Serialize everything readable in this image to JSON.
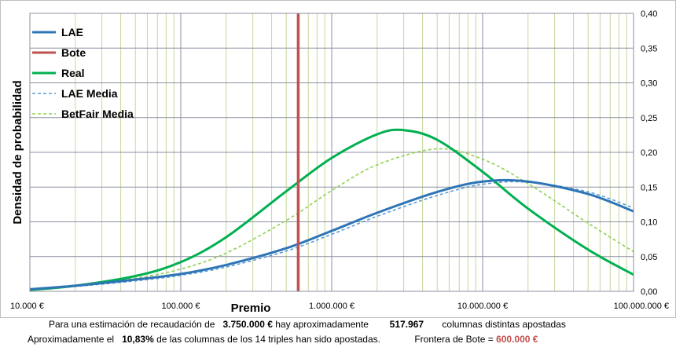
{
  "chart_data": {
    "type": "line",
    "x_scale": "log",
    "xlabel": "Premio",
    "ylabel": "Densidad de probabilidad",
    "xlim": [
      10000,
      100000000
    ],
    "ylim": [
      0,
      0.4
    ],
    "x_ticks": [
      10000,
      100000,
      1000000,
      10000000,
      100000000
    ],
    "x_tick_labels": [
      "10.000 €",
      "100.000 €",
      "1.000.000 €",
      "10.000.000 €",
      "100.000.000 €"
    ],
    "y_ticks": [
      0,
      0.05,
      0.1,
      0.15,
      0.2,
      0.25,
      0.3,
      0.35,
      0.4
    ],
    "y_tick_labels": [
      "0,00",
      "0,05",
      "0,10",
      "0,15",
      "0,20",
      "0,25",
      "0,30",
      "0,35",
      "0,40"
    ],
    "grid": true,
    "legend_position": "top-left",
    "series": [
      {
        "name": "LAE",
        "color": "#2e75b6",
        "style": "solid",
        "x": [
          10000,
          20000,
          50000,
          100000,
          200000,
          500000,
          1000000,
          2000000,
          5000000,
          10000000,
          20000000,
          50000000,
          100000000
        ],
        "y": [
          0.003,
          0.008,
          0.017,
          0.025,
          0.038,
          0.062,
          0.087,
          0.113,
          0.143,
          0.158,
          0.158,
          0.14,
          0.115
        ]
      },
      {
        "name": "Bote",
        "color": "#c0504d",
        "style": "vertical",
        "x": [
          600000,
          600000
        ],
        "y": [
          0,
          0.4
        ]
      },
      {
        "name": "Real",
        "color": "#00b050",
        "style": "solid",
        "x": [
          10000,
          20000,
          50000,
          100000,
          200000,
          500000,
          1000000,
          2000000,
          3000000,
          5000000,
          10000000,
          20000000,
          50000000,
          100000000
        ],
        "y": [
          0.002,
          0.008,
          0.022,
          0.042,
          0.078,
          0.144,
          0.192,
          0.226,
          0.232,
          0.218,
          0.172,
          0.119,
          0.06,
          0.024
        ]
      },
      {
        "name": "LAE Media",
        "color": "#5b9bd5",
        "style": "dashed",
        "x": [
          10000,
          20000,
          50000,
          100000,
          200000,
          500000,
          1000000,
          2000000,
          5000000,
          10000000,
          20000000,
          50000000,
          100000000
        ],
        "y": [
          0.003,
          0.007,
          0.015,
          0.023,
          0.035,
          0.058,
          0.082,
          0.108,
          0.138,
          0.154,
          0.157,
          0.143,
          0.12
        ]
      },
      {
        "name": "BetFair Media",
        "color": "#92d050",
        "style": "dashed",
        "x": [
          10000,
          20000,
          50000,
          100000,
          200000,
          500000,
          1000000,
          2000000,
          5000000,
          10000000,
          20000000,
          50000000,
          100000000
        ],
        "y": [
          0.002,
          0.007,
          0.019,
          0.032,
          0.055,
          0.102,
          0.145,
          0.182,
          0.205,
          0.19,
          0.155,
          0.098,
          0.057
        ]
      }
    ]
  },
  "footer": {
    "line1": {
      "prefix": "Para  una estimación de recaudación de",
      "amount": "3.750.000 €",
      "middle": "hay aproximadamente",
      "count": "517.967",
      "suffix": "columnas distintas apostadas"
    },
    "line2": {
      "prefix": "Aproximadamente el",
      "pct": "10,83%",
      "middle": "de las columnas de los 14 triples han sido apostadas.",
      "frontier_label": "Frontera de Bote =",
      "frontier_value": "600.000 €"
    }
  }
}
